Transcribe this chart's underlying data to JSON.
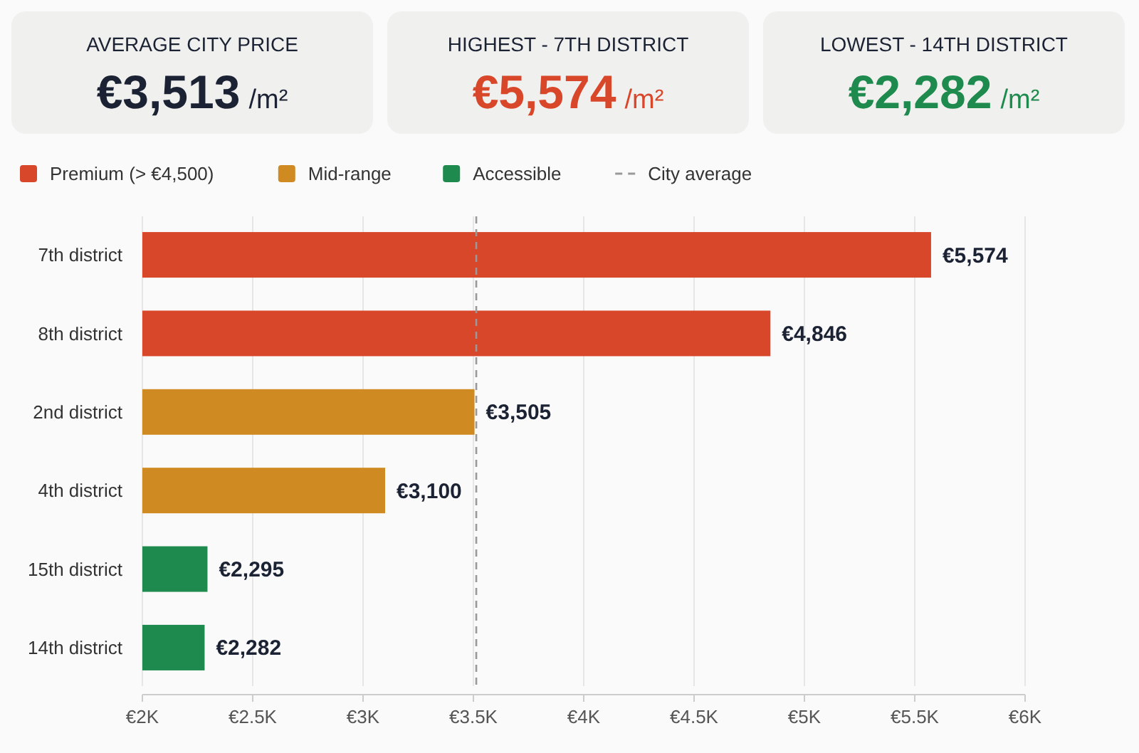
{
  "chart_data": {
    "type": "bar",
    "orientation": "horizontal",
    "categories": [
      "7th district",
      "8th district",
      "2nd district",
      "4th district",
      "15th district",
      "14th district"
    ],
    "series": [
      {
        "name": "Premium (> €4,500)",
        "color": "#d9472b",
        "values": [
          5574,
          4846,
          null,
          null,
          null,
          null
        ],
        "value_labels": [
          "€5,574",
          "€4,846",
          null,
          null,
          null,
          null
        ]
      },
      {
        "name": "Mid-range",
        "color": "#d08a22",
        "values": [
          null,
          null,
          3505,
          3100,
          null,
          null
        ],
        "value_labels": [
          null,
          null,
          "€3,505",
          "€3,100",
          null,
          null
        ]
      },
      {
        "name": "Accessible",
        "color": "#1e8a4e",
        "values": [
          null,
          null,
          null,
          null,
          2295,
          2282
        ],
        "value_labels": [
          null,
          null,
          null,
          null,
          "€2,295",
          "€2,282"
        ]
      }
    ],
    "xlim": [
      2000,
      6000
    ],
    "xticks": [
      {
        "value": 2000,
        "label": "€2K"
      },
      {
        "value": 2500,
        "label": "€2.5K"
      },
      {
        "value": 3000,
        "label": "€3K"
      },
      {
        "value": 3500,
        "label": "€3.5K"
      },
      {
        "value": 4000,
        "label": "€4K"
      },
      {
        "value": 4500,
        "label": "€4.5K"
      },
      {
        "value": 5000,
        "label": "€5K"
      },
      {
        "value": 5500,
        "label": "€5.5K"
      },
      {
        "value": 6000,
        "label": "€6K"
      }
    ],
    "ref_lines": [
      {
        "axis": "x",
        "value": 3513,
        "label": "City average",
        "color": "#999999",
        "line_style": "dashed"
      }
    ],
    "grid": "x",
    "legend": "top left",
    "annotations": [
      "AVERAGE CITY PRICE",
      "€3,513 /m²",
      "HIGHEST - 7TH DISTRICT",
      "€5,574 /m²",
      "LOWEST - 14TH DISTRICT",
      "€2,282 /m²"
    ]
  }
}
